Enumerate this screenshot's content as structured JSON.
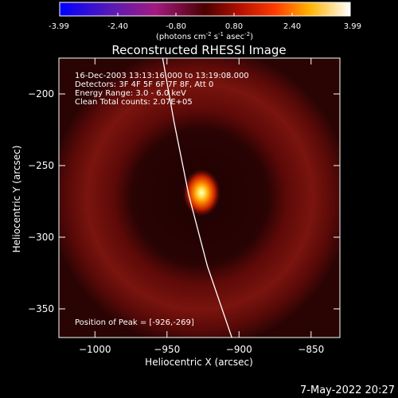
{
  "colorbar": {
    "ticks": [
      "-3.99",
      "-2.40",
      "-0.80",
      "0.80",
      "2.40",
      "3.99"
    ],
    "units_main": "(photons cm",
    "units_exp1": "-2",
    "units_mid": " s",
    "units_exp2": "-1",
    "units_tail": " asec",
    "units_exp3": "-2",
    "units_close": ")"
  },
  "chart_data": {
    "type": "heatmap",
    "title": "Reconstructed RHESSI Image",
    "xlabel": "Heliocentric X (arcsec)",
    "ylabel": "Heliocentric Y (arcsec)",
    "xlim": [
      -1025,
      -830
    ],
    "ylim": [
      -370,
      -175
    ],
    "x_ticks": [
      -1000,
      -950,
      -900,
      -850
    ],
    "y_ticks": [
      -200,
      -250,
      -300,
      -350
    ],
    "x_tick_labels": [
      "−1000",
      "−950",
      "−900",
      "−850"
    ],
    "y_tick_labels": [
      "−200",
      "−250",
      "−300",
      "−350"
    ],
    "color_range": [
      -3.99,
      3.99
    ],
    "peak": {
      "x": -926,
      "y": -269
    },
    "ring": {
      "center_x": -927,
      "center_y": -272,
      "radius": 72
    },
    "limb_points": [
      [
        -953,
        -175
      ],
      [
        -945,
        -220
      ],
      [
        -935,
        -270
      ],
      [
        -922,
        -320
      ],
      [
        -905,
        -370
      ]
    ],
    "annotations": [
      "16-Dec-2003 13:13:16.000 to 13:19:08.000",
      "Detectors: 3F 4F 5F 6F 7F 8F, Att 0",
      "Energy Range: 3.0 - 6.0 keV",
      "Clean    Total counts: 2.07E+05"
    ],
    "peak_label": "Position of Peak = [-926,-269]"
  },
  "footer": {
    "timestamp": "7-May-2022 20:27"
  }
}
